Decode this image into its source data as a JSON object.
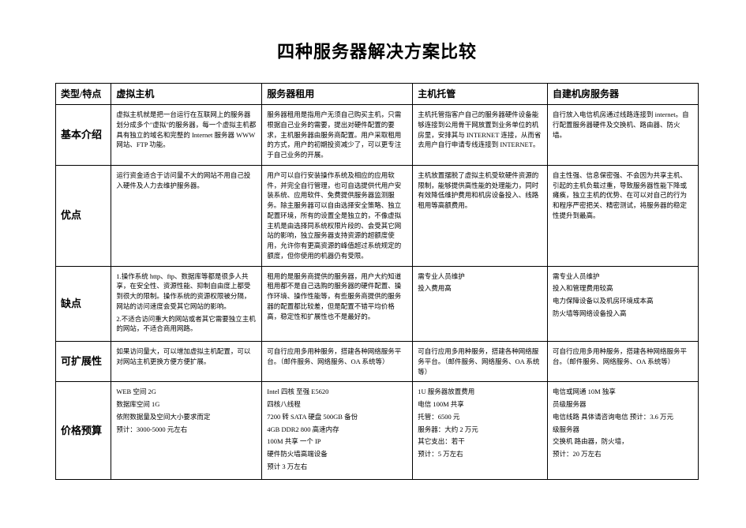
{
  "title": "四种服务器解决方案比较",
  "headers": {
    "c0": "类型/特点",
    "c1": "虚拟主机",
    "c2": "服务器租用",
    "c3": "主机托管",
    "c4": "自建机房服务器"
  },
  "rows": {
    "intro": {
      "label": "基本介绍",
      "c1": "虚拟主机就是把一台运行在互联网上的服务器划分成多个\"虚拟\"的服务器，每一个虚拟主机都具有独立的域名和完整的 Internet 服务器 WWW 网站、FTP 功能。",
      "c2": "服务器租用是指用户无须自己购买主机，只需根据自己业务的需要，提出对硬件配置的要求，主机服务器由服务商配置。用户采取租用的方式，用户的初期投资减少了，可以更专注于自己业务的开展。",
      "c3": "主机托管指客户自己的服务器硬件设备能够连接到公用骨干网放置到业务单位的机房里，安排其与 INTERNET 连接，从而省去用户自行申请专线连接到 INTERNET。",
      "c4": "自行放入电信机房通过线路连接到 internet。自行配置服务器硬件及交换机、路由器、防火墙。"
    },
    "pros": {
      "label": "优点",
      "c1": "运行资金适合于访问量不大的网站不用自己投入硬件及人力去维护服务器。",
      "c2": "用户可以自行安装操作系统及相应的应用软件，并完全自行管理，也可自选提供代用户安装系统、应用软件、免费提供服务器监测服务。除主服务器可以自由选择安全策略、独立配置环境，所有的设置全是独立的，不像虚拟主机是由选择同系统权限片段的、会受其它网站的影响，独立服务器支持资源的超额度使用，允许你有更高资源的峰值超过系统规定的额度，但你使用的机器仍有受限。",
      "c3": "主机放置摆脱了虚拟主机受软硬件资源的限制，能够提供高性能的处理能力，同时有效降低维护费用和机房设备投入、线路租用等高额费用。",
      "c4": "自主性强、信息保密强、不会因为共享主机、引起的主机负载过重，导致服务器性能下降或瘫痪，独立主机的优势、在可以对自己的行为和程序严密把关、精密测试，将服务器的稳定性提升到最高。",
      "pros_c2_extra": ""
    },
    "cons": {
      "label": "缺点",
      "c1_l1": "1.操作系统 http、ftp、数据库等都是很多人共享，在安全性、资源性能、抑制自由度上都受到很大的限制。操作系统的资源权限被分隔，网站的访问速度会受其它网站的影响。",
      "c1_l2": "2.不适合访问重大的网站或者其它需要独立主机的网站，不适合商用网路。",
      "c2": "租用的是服务商提供的服务器，用户大约知道租用都不是自己选购的服务器的硬件配置、操作环境、操作性能等，有些服务商提供的服务器的配置都比较差，但是配置不错平均价格高，稳定性和扩展性也不是最好的。",
      "c3_l1": "需专业人员维护",
      "c3_l2": "投入费用高",
      "c4_l1": "需专业人员维护",
      "c4_l2": "投入和管理费用较高",
      "c4_l3": "电力保障设备以及机房环境成本高",
      "c4_l4": "防火墙等网络设备投入高"
    },
    "scale": {
      "label": "可扩展性",
      "c1": "如果访问量大，可以增加虚拟主机配置，可以对网站主机更换方便方便扩展。",
      "c2": "可自行应用多用种服务，搭建各种网络服务平台。（邮件服务、网络服务、OA 系统等）",
      "c3": "可自行应用多用种服务，搭建各种网络服务平台。（邮件服务、网络服务、OA 系统等）",
      "c4": "可自行应用多用种服务，搭建各种网络服务平台。（邮件服务、网络服务、OA 系统等）"
    },
    "price": {
      "label": "价格预算",
      "c1_l1": "WEB 空间  2G",
      "c1_l2": "数据库空间  1G",
      "c1_l3": "依附数据量及空间大小要求而定",
      "c1_l4": "预计：3000-5000 元左右",
      "c2_l1": "Intel 四核 至强 E5620",
      "c2_l2": "7200 转   SATA 硬盘 500GB 备份",
      "c2_l3": "4GB   DDR2 800   高速内存",
      "c2_l4": "100M 共享      一个 IP",
      "c2_l5": "硬件防火墙高端设备",
      "c2_l6": "预计 3 万左右",
      "c2_l0": "四核八线程",
      "c3_l1": "1U 服务器放置费用",
      "c3_l2": "电信 100M 共享",
      "c3_l3": "托管：6500 元",
      "c3_l4": "服务器：大约 2 万元",
      "c3_l5": "其它支出：若干",
      "c3_l6": "预计：5 万左右",
      "c4_l1": "电信或网通 10M 独享",
      "c4_l2": "员级服务器",
      "c4_l3": "电信线路 具体请咨询电信 预计：3.6 万元",
      "c4_l4": "级服务器",
      "c4_l5": "交换机 路由器，防火墙，",
      "c4_l6": "预计：20 万左右"
    }
  }
}
